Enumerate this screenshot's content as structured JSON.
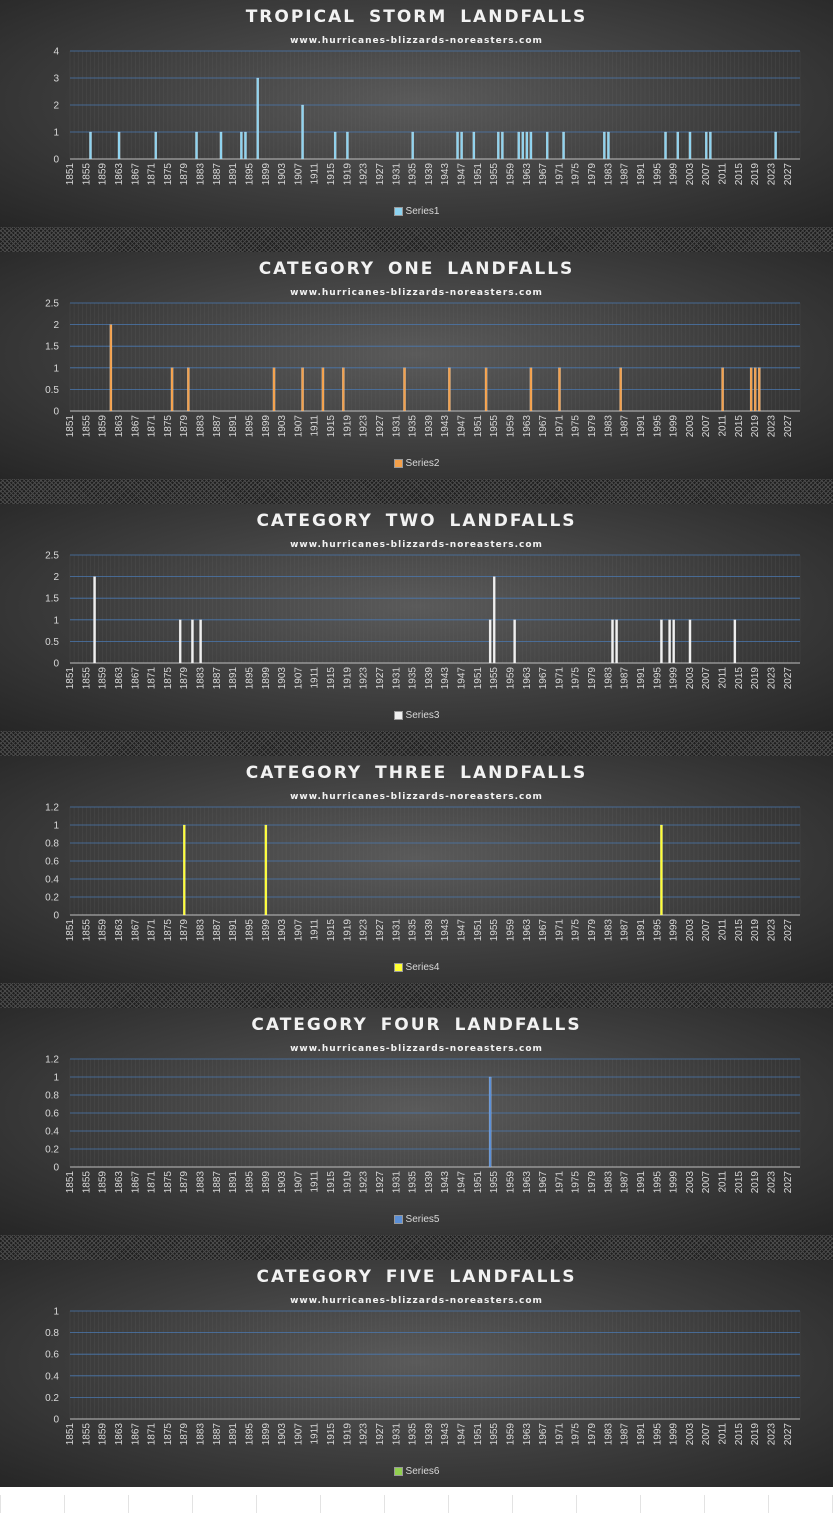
{
  "colors": {
    "series1": "#8dd3f0",
    "series2": "#f4a04a",
    "series3": "#f0f0f0",
    "series4": "#ffff33",
    "series5": "#5b8fd6",
    "series6": "#92d050",
    "gridline": "#4a78b0",
    "axis_text": "#d9d9d9"
  },
  "chart_data": [
    {
      "type": "bar",
      "title": "TROPICAL STORM LANDFALLS",
      "subtitle": "www.hurricanes-blizzards-noreasters.com",
      "x_tick_labels": [
        "1851",
        "1855",
        "1859",
        "1863",
        "1867",
        "1871",
        "1875",
        "1879",
        "1883",
        "1887",
        "1891",
        "1895",
        "1899",
        "1903",
        "1907",
        "1911",
        "1915",
        "1919",
        "1923",
        "1927",
        "1931",
        "1935",
        "1939",
        "1943",
        "1947",
        "1951",
        "1955",
        "1959",
        "1963",
        "1967",
        "1971",
        "1975",
        "1979",
        "1983",
        "1987",
        "1991",
        "1995",
        "1999",
        "2003",
        "2007",
        "2011",
        "2015",
        "2019",
        "2023",
        "2027"
      ],
      "xlim": [
        1851,
        2030
      ],
      "ylim": [
        0,
        4
      ],
      "y_ticks": [
        "0",
        "1",
        "2",
        "3",
        "4"
      ],
      "series": [
        {
          "name": "Series1",
          "x": [
            1856,
            1863,
            1872,
            1882,
            1888,
            1893,
            1894,
            1897,
            1908,
            1916,
            1919,
            1935,
            1946,
            1947,
            1950,
            1956,
            1957,
            1961,
            1962,
            1963,
            1964,
            1968,
            1972,
            1982,
            1983,
            1997,
            2000,
            2003,
            2007,
            2008,
            2024
          ],
          "values": [
            1,
            1,
            1,
            1,
            1,
            1,
            1,
            3,
            2,
            1,
            1,
            1,
            1,
            1,
            1,
            1,
            1,
            1,
            1,
            1,
            1,
            1,
            1,
            1,
            1,
            1,
            1,
            1,
            1,
            1,
            1
          ]
        }
      ],
      "legend": [
        "Series1"
      ],
      "legend_position": "bottom"
    },
    {
      "type": "bar",
      "title": "CATEGORY ONE LANDFALLS",
      "subtitle": "www.hurricanes-blizzards-noreasters.com",
      "x_tick_labels": [
        "1851",
        "1855",
        "1859",
        "1863",
        "1867",
        "1871",
        "1875",
        "1879",
        "1883",
        "1887",
        "1891",
        "1895",
        "1899",
        "1903",
        "1907",
        "1911",
        "1915",
        "1919",
        "1923",
        "1927",
        "1931",
        "1935",
        "1939",
        "1943",
        "1947",
        "1951",
        "1955",
        "1959",
        "1963",
        "1967",
        "1971",
        "1975",
        "1979",
        "1983",
        "1987",
        "1991",
        "1995",
        "1999",
        "2003",
        "2007",
        "2011",
        "2015",
        "2019",
        "2023",
        "2027"
      ],
      "xlim": [
        1851,
        2030
      ],
      "ylim": [
        0,
        2.5
      ],
      "y_ticks": [
        "0",
        "0.5",
        "1",
        "1.5",
        "2",
        "2.5"
      ],
      "series": [
        {
          "name": "Series2",
          "x": [
            1861,
            1876,
            1880,
            1901,
            1908,
            1913,
            1918,
            1933,
            1944,
            1953,
            1964,
            1971,
            1986,
            2011,
            2018,
            2019,
            2020
          ],
          "values": [
            2,
            1,
            1,
            1,
            1,
            1,
            1,
            1,
            1,
            1,
            1,
            1,
            1,
            1,
            1,
            1,
            1
          ]
        }
      ],
      "legend": [
        "Series2"
      ],
      "legend_position": "bottom"
    },
    {
      "type": "bar",
      "title": "CATEGORY TWO LANDFALLS",
      "subtitle": "www.hurricanes-blizzards-noreasters.com",
      "x_tick_labels": [
        "1851",
        "1855",
        "1859",
        "1863",
        "1867",
        "1871",
        "1875",
        "1879",
        "1883",
        "1887",
        "1891",
        "1895",
        "1899",
        "1903",
        "1907",
        "1911",
        "1915",
        "1919",
        "1923",
        "1927",
        "1931",
        "1935",
        "1939",
        "1943",
        "1947",
        "1951",
        "1955",
        "1959",
        "1963",
        "1967",
        "1971",
        "1975",
        "1979",
        "1983",
        "1987",
        "1991",
        "1995",
        "1999",
        "2003",
        "2007",
        "2011",
        "2015",
        "2019",
        "2023",
        "2027"
      ],
      "xlim": [
        1851,
        2030
      ],
      "ylim": [
        0,
        2.5
      ],
      "y_ticks": [
        "0",
        "0.5",
        "1",
        "1.5",
        "2",
        "2.5"
      ],
      "series": [
        {
          "name": "Series3",
          "x": [
            1857,
            1878,
            1881,
            1883,
            1954,
            1955,
            1960,
            1984,
            1985,
            1996,
            1998,
            1999,
            2003,
            2014
          ],
          "values": [
            2,
            1,
            1,
            1,
            1,
            2,
            1,
            1,
            1,
            1,
            1,
            1,
            1,
            1
          ]
        }
      ],
      "legend": [
        "Series3"
      ],
      "legend_position": "bottom"
    },
    {
      "type": "bar",
      "title": "CATEGORY THREE LANDFALLS",
      "subtitle": "www.hurricanes-blizzards-noreasters.com",
      "x_tick_labels": [
        "1851",
        "1855",
        "1859",
        "1863",
        "1867",
        "1871",
        "1875",
        "1879",
        "1883",
        "1887",
        "1891",
        "1895",
        "1899",
        "1903",
        "1907",
        "1911",
        "1915",
        "1919",
        "1923",
        "1927",
        "1931",
        "1935",
        "1939",
        "1943",
        "1947",
        "1951",
        "1955",
        "1959",
        "1963",
        "1967",
        "1971",
        "1975",
        "1979",
        "1983",
        "1987",
        "1991",
        "1995",
        "1999",
        "2003",
        "2007",
        "2011",
        "2015",
        "2019",
        "2023",
        "2027"
      ],
      "xlim": [
        1851,
        2030
      ],
      "ylim": [
        0,
        1.2
      ],
      "y_ticks": [
        "0",
        "0.2",
        "0.4",
        "0.6",
        "0.8",
        "1",
        "1.2"
      ],
      "series": [
        {
          "name": "Series4",
          "x": [
            1879,
            1899,
            1996
          ],
          "values": [
            1,
            1,
            1
          ]
        }
      ],
      "legend": [
        "Series4"
      ],
      "legend_position": "bottom"
    },
    {
      "type": "bar",
      "title": "CATEGORY FOUR LANDFALLS",
      "subtitle": "www.hurricanes-blizzards-noreasters.com",
      "x_tick_labels": [
        "1851",
        "1855",
        "1859",
        "1863",
        "1867",
        "1871",
        "1875",
        "1879",
        "1883",
        "1887",
        "1891",
        "1895",
        "1899",
        "1903",
        "1907",
        "1911",
        "1915",
        "1919",
        "1923",
        "1927",
        "1931",
        "1935",
        "1939",
        "1943",
        "1947",
        "1951",
        "1955",
        "1959",
        "1963",
        "1967",
        "1971",
        "1975",
        "1979",
        "1983",
        "1987",
        "1991",
        "1995",
        "1999",
        "2003",
        "2007",
        "2011",
        "2015",
        "2019",
        "2023",
        "2027"
      ],
      "xlim": [
        1851,
        2030
      ],
      "ylim": [
        0,
        1.2
      ],
      "y_ticks": [
        "0",
        "0.2",
        "0.4",
        "0.6",
        "0.8",
        "1",
        "1.2"
      ],
      "series": [
        {
          "name": "Series5",
          "x": [
            1954
          ],
          "values": [
            1
          ]
        }
      ],
      "legend": [
        "Series5"
      ],
      "legend_position": "bottom"
    },
    {
      "type": "bar",
      "title": "CATEGORY FIVE LANDFALLS",
      "subtitle": "www.hurricanes-blizzards-noreasters.com",
      "x_tick_labels": [
        "1851",
        "1855",
        "1859",
        "1863",
        "1867",
        "1871",
        "1875",
        "1879",
        "1883",
        "1887",
        "1891",
        "1895",
        "1899",
        "1903",
        "1907",
        "1911",
        "1915",
        "1919",
        "1923",
        "1927",
        "1931",
        "1935",
        "1939",
        "1943",
        "1947",
        "1951",
        "1955",
        "1959",
        "1963",
        "1967",
        "1971",
        "1975",
        "1979",
        "1983",
        "1987",
        "1991",
        "1995",
        "1999",
        "2003",
        "2007",
        "2011",
        "2015",
        "2019",
        "2023",
        "2027"
      ],
      "xlim": [
        1851,
        2030
      ],
      "ylim": [
        0,
        1
      ],
      "y_ticks": [
        "0",
        "0.2",
        "0.4",
        "0.6",
        "0.8",
        "1"
      ],
      "series": [
        {
          "name": "Series6",
          "x": [],
          "values": []
        }
      ],
      "legend": [
        "Series6"
      ],
      "legend_position": "bottom"
    }
  ]
}
